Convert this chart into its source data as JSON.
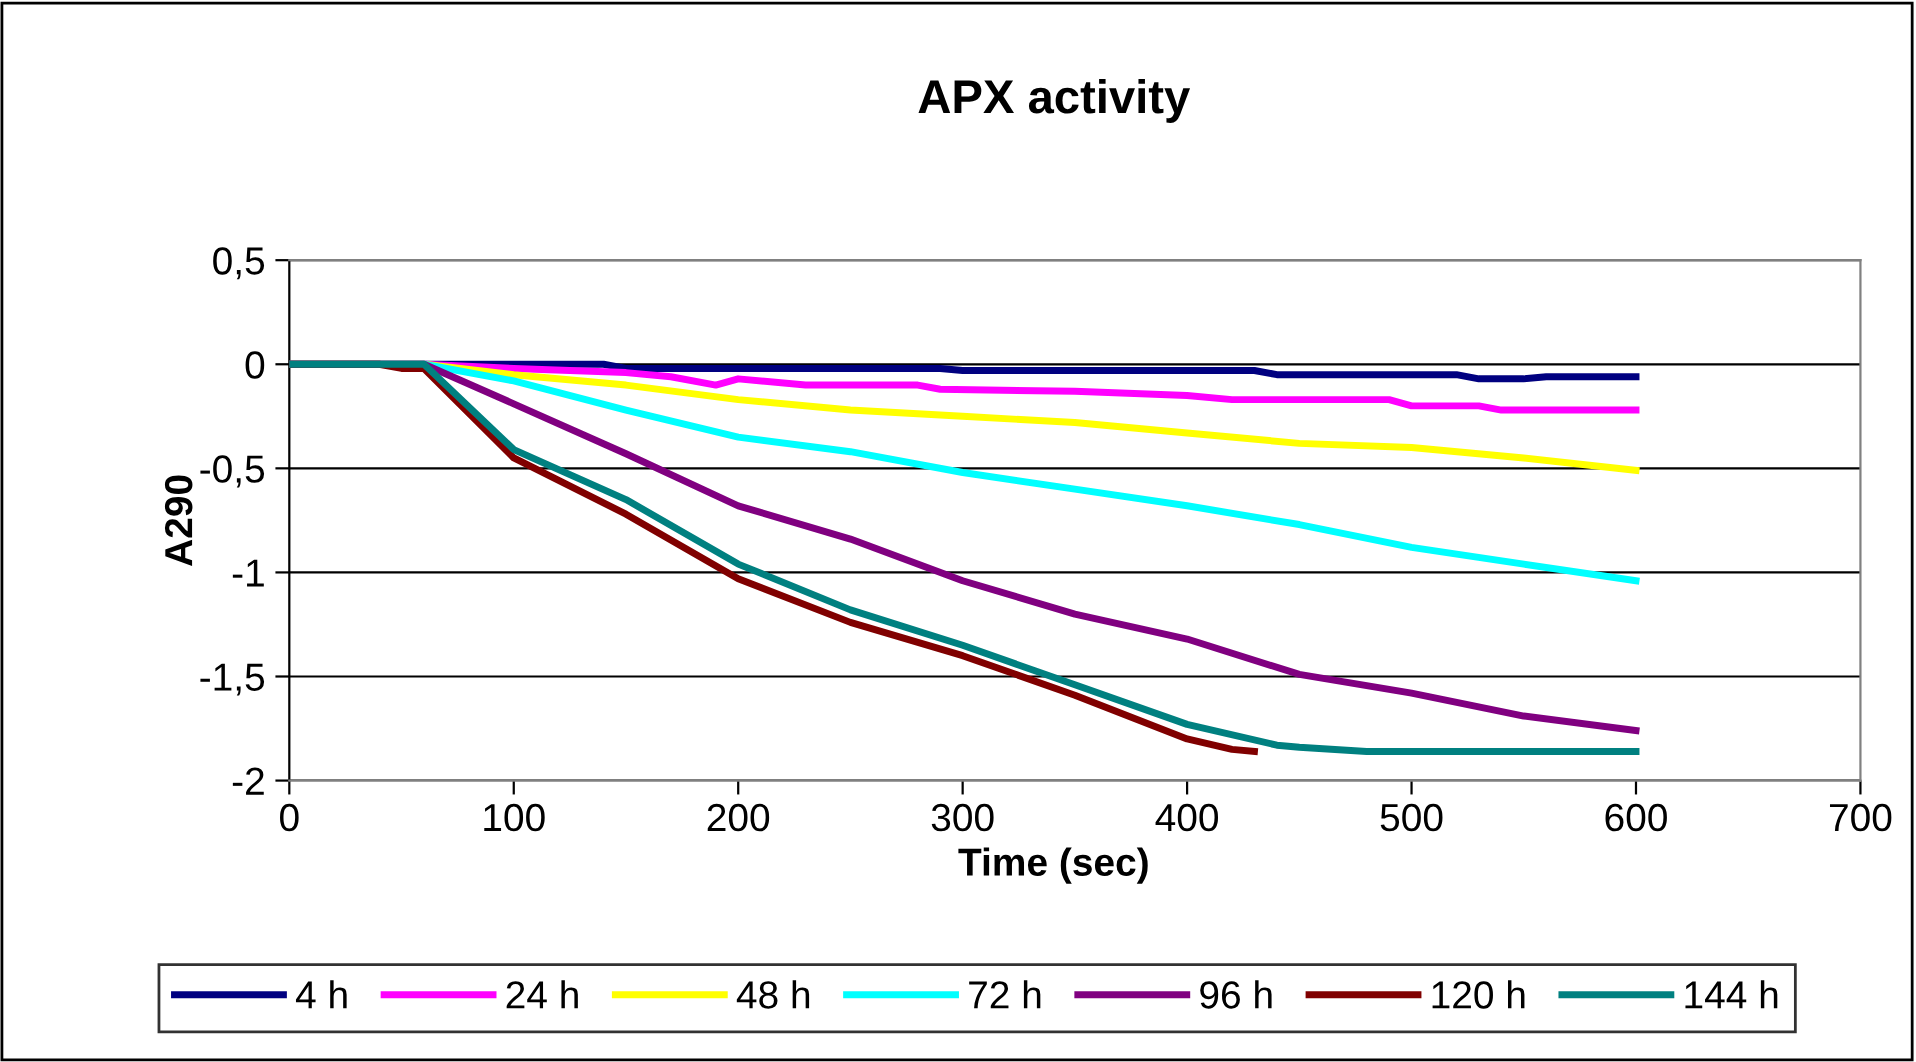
{
  "chart_data": {
    "type": "line",
    "title": "APX activity",
    "xlabel": "Time (sec)",
    "ylabel": "A290",
    "xlim": [
      0,
      700
    ],
    "xticks": [
      0,
      100,
      200,
      300,
      400,
      500,
      600,
      700
    ],
    "ylim": [
      -2,
      0.5
    ],
    "yticks": [
      {
        "value": 0.5,
        "label": "0,5"
      },
      0,
      {
        "value": -0.5,
        "label": "-0,5"
      },
      -1,
      {
        "value": -1.5,
        "label": "-1,5"
      },
      -2
    ],
    "grid": "y",
    "legend": "bottom",
    "marker": "none",
    "line_style": "solid",
    "series": [
      {
        "name": "4 h",
        "color": "#000080",
        "x": [
          0,
          60,
          140,
          150,
          290,
          300,
          430,
          440,
          520,
          530,
          550,
          560,
          600
        ],
        "values": [
          0,
          0,
          0,
          -0.02,
          -0.02,
          -0.03,
          -0.03,
          -0.05,
          -0.05,
          -0.07,
          -0.07,
          -0.06,
          -0.06
        ]
      },
      {
        "name": "24 h",
        "color": "#ff00ff",
        "x": [
          0,
          60,
          100,
          150,
          170,
          190,
          200,
          230,
          280,
          290,
          350,
          400,
          420,
          490,
          500,
          530,
          540,
          600
        ],
        "values": [
          0,
          0,
          -0.02,
          -0.04,
          -0.06,
          -0.1,
          -0.07,
          -0.1,
          -0.1,
          -0.12,
          -0.13,
          -0.15,
          -0.17,
          -0.17,
          -0.2,
          -0.2,
          -0.22,
          -0.22
        ]
      },
      {
        "name": "48 h",
        "color": "#ffff00",
        "x": [
          0,
          60,
          100,
          150,
          200,
          250,
          300,
          350,
          400,
          450,
          500,
          550,
          600
        ],
        "values": [
          0,
          0,
          -0.05,
          -0.1,
          -0.17,
          -0.22,
          -0.25,
          -0.28,
          -0.33,
          -0.38,
          -0.4,
          -0.45,
          -0.51
        ]
      },
      {
        "name": "72 h",
        "color": "#00ffff",
        "x": [
          0,
          60,
          100,
          150,
          200,
          250,
          300,
          350,
          400,
          450,
          500,
          550,
          600
        ],
        "values": [
          0,
          0,
          -0.08,
          -0.22,
          -0.35,
          -0.42,
          -0.52,
          -0.6,
          -0.68,
          -0.77,
          -0.88,
          -0.96,
          -1.04
        ]
      },
      {
        "name": "96 h",
        "color": "#800080",
        "x": [
          0,
          60,
          100,
          150,
          200,
          250,
          300,
          350,
          400,
          450,
          500,
          550,
          600
        ],
        "values": [
          0,
          0,
          -0.19,
          -0.43,
          -0.68,
          -0.84,
          -1.04,
          -1.2,
          -1.32,
          -1.49,
          -1.58,
          -1.69,
          -1.76
        ]
      },
      {
        "name": "120 h",
        "color": "#800000",
        "x": [
          0,
          40,
          50,
          60,
          100,
          150,
          200,
          250,
          300,
          350,
          400,
          420,
          430
        ],
        "values": [
          0,
          0,
          -0.02,
          -0.02,
          -0.45,
          -0.72,
          -1.03,
          -1.24,
          -1.4,
          -1.59,
          -1.8,
          -1.85,
          -1.86
        ]
      },
      {
        "name": "144 h",
        "color": "#008080",
        "x": [
          0,
          60,
          100,
          150,
          200,
          250,
          300,
          350,
          400,
          440,
          450,
          480,
          600
        ],
        "values": [
          0,
          0,
          -0.41,
          -0.65,
          -0.96,
          -1.18,
          -1.35,
          -1.54,
          -1.73,
          -1.83,
          -1.84,
          -1.86,
          -1.86
        ]
      }
    ]
  }
}
